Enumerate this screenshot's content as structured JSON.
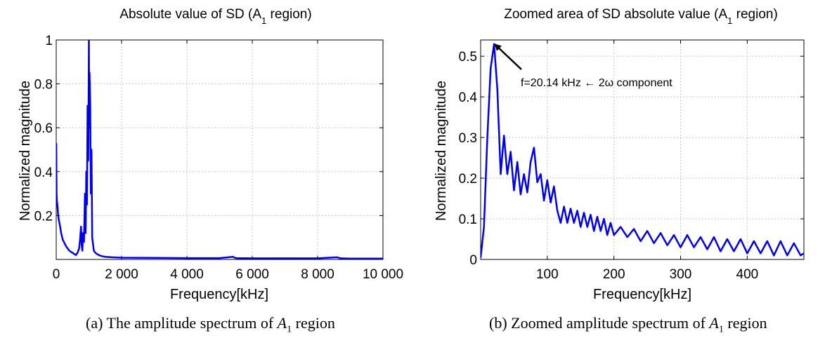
{
  "colors": {
    "line": "#0000ee",
    "grid": "#b3b3b3",
    "axes": "#000000"
  },
  "chart_data": [
    {
      "type": "line",
      "title": "Absolute value of SD  (A",
      "title_sub": "1",
      "title_after": " region)",
      "xlabel": "Frequency[kHz]",
      "ylabel": "Normalized magnitude",
      "xlim": [
        0,
        10000
      ],
      "ylim": [
        0,
        1
      ],
      "grid": true,
      "xticks": [
        0,
        2000,
        4000,
        6000,
        8000,
        10000
      ],
      "xtick_labels": [
        "0",
        "2 000",
        "4 000",
        "6 000",
        "8 000",
        "10 000"
      ],
      "yticks": [
        0.2,
        0.4,
        0.6,
        0.8,
        1
      ],
      "ytick_labels": [
        "0.2",
        "0.4",
        "0.6",
        "0.8",
        "1"
      ],
      "series": [
        {
          "x": [
            0,
            10,
            20,
            40,
            60,
            80,
            120,
            150,
            200,
            300,
            400,
            500,
            600,
            650,
            700,
            730,
            760,
            780,
            800,
            820,
            850,
            880,
            900,
            920,
            940,
            960,
            980,
            1000,
            1010,
            1020,
            1040,
            1060,
            1080,
            1100,
            1150,
            1200,
            1300,
            1400,
            1500,
            1700,
            2000,
            3000,
            4000,
            5000,
            5400,
            5500,
            6000,
            7000,
            8000,
            8600,
            8700,
            9000,
            10000
          ],
          "y": [
            0.53,
            0.3,
            0.27,
            0.24,
            0.2,
            0.18,
            0.15,
            0.12,
            0.09,
            0.06,
            0.04,
            0.03,
            0.02,
            0.03,
            0.05,
            0.09,
            0.15,
            0.06,
            0.04,
            0.12,
            0.08,
            0.3,
            0.12,
            0.4,
            0.25,
            0.7,
            0.45,
            1.0,
            0.6,
            0.85,
            0.7,
            0.3,
            0.5,
            0.1,
            0.04,
            0.03,
            0.02,
            0.015,
            0.012,
            0.01,
            0.008,
            0.007,
            0.006,
            0.006,
            0.012,
            0.006,
            0.005,
            0.005,
            0.005,
            0.01,
            0.005,
            0.004,
            0.004
          ]
        }
      ]
    },
    {
      "type": "line",
      "title": "Zoomed area of SD absolute value (A",
      "title_sub": "1",
      "title_after": " region)",
      "xlabel": "Frequency[kHz]",
      "ylabel": "Normalized magnitude",
      "xlim": [
        0,
        485
      ],
      "ylim": [
        0,
        0.54
      ],
      "grid": true,
      "xticks": [
        100,
        200,
        300,
        400
      ],
      "xtick_labels": [
        "100",
        "200",
        "300",
        "400"
      ],
      "yticks": [
        0,
        0.1,
        0.2,
        0.3,
        0.4,
        0.5
      ],
      "ytick_labels": [
        "0",
        "0.1",
        "0.2",
        "0.3",
        "0.4",
        "0.5"
      ],
      "annotation": {
        "text": "f=20.14 kHz ← 2ω component",
        "x": 20.14,
        "y": 0.53
      },
      "series": [
        {
          "x": [
            0,
            5,
            10,
            15,
            20.14,
            25,
            30,
            35,
            40,
            45,
            50,
            55,
            60,
            65,
            70,
            75,
            80,
            85,
            90,
            95,
            100,
            105,
            110,
            115,
            120,
            125,
            130,
            135,
            140,
            145,
            150,
            155,
            160,
            165,
            170,
            175,
            180,
            185,
            190,
            195,
            200,
            210,
            220,
            230,
            240,
            250,
            260,
            270,
            280,
            290,
            300,
            310,
            320,
            330,
            340,
            350,
            360,
            370,
            380,
            390,
            400,
            410,
            420,
            430,
            440,
            450,
            460,
            470,
            480,
            485
          ],
          "y": [
            0.005,
            0.08,
            0.3,
            0.47,
            0.53,
            0.42,
            0.21,
            0.305,
            0.21,
            0.265,
            0.17,
            0.24,
            0.16,
            0.21,
            0.165,
            0.24,
            0.275,
            0.19,
            0.21,
            0.145,
            0.195,
            0.14,
            0.18,
            0.12,
            0.09,
            0.13,
            0.09,
            0.125,
            0.09,
            0.12,
            0.08,
            0.115,
            0.08,
            0.11,
            0.07,
            0.105,
            0.07,
            0.1,
            0.06,
            0.09,
            0.06,
            0.08,
            0.055,
            0.075,
            0.045,
            0.07,
            0.04,
            0.065,
            0.035,
            0.06,
            0.03,
            0.06,
            0.03,
            0.055,
            0.025,
            0.055,
            0.02,
            0.05,
            0.02,
            0.05,
            0.015,
            0.045,
            0.015,
            0.045,
            0.01,
            0.045,
            0.01,
            0.04,
            0.01,
            0.015
          ]
        }
      ]
    }
  ],
  "captions": [
    {
      "label": "(a) The amplitude spectrum of ",
      "var": "A",
      "sub": "1",
      "rest": " region"
    },
    {
      "label": "(b) Zoomed amplitude spectrum of ",
      "var": "A",
      "sub": "1",
      "rest": " region"
    }
  ]
}
